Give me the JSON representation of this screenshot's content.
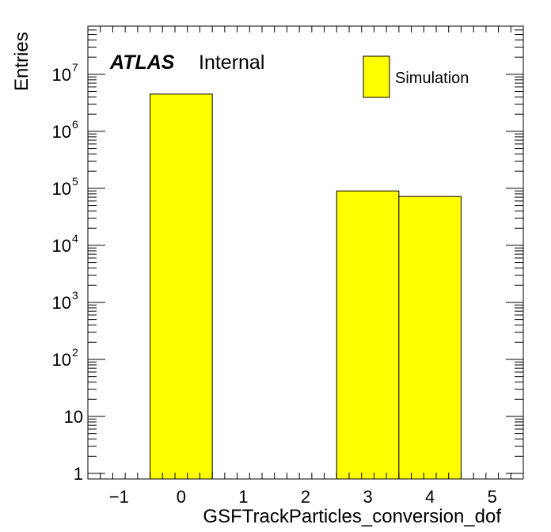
{
  "chart_data": {
    "type": "bar",
    "subtype": "histogram",
    "xlabel": "GSFTrackParticles_conversion_dof",
    "ylabel": "Entries",
    "xlim": [
      -1.5,
      5.5
    ],
    "ylim": [
      0.8,
      70000000
    ],
    "yscale": "log",
    "grid": false,
    "bin_width": 1,
    "bins": [
      {
        "x": 0,
        "value": 4500000
      },
      {
        "x": 3,
        "value": 90000
      },
      {
        "x": 4,
        "value": 72000
      }
    ],
    "xticks": [
      {
        "value": -1,
        "label": "−1"
      },
      {
        "value": 0,
        "label": "0"
      },
      {
        "value": 1,
        "label": "1"
      },
      {
        "value": 2,
        "label": "2"
      },
      {
        "value": 3,
        "label": "3"
      },
      {
        "value": 4,
        "label": "4"
      },
      {
        "value": 5,
        "label": "5"
      }
    ],
    "yticks": [
      {
        "value": 1,
        "base": "1",
        "exp": ""
      },
      {
        "value": 10,
        "base": "10",
        "exp": ""
      },
      {
        "value": 100,
        "base": "10",
        "exp": "2"
      },
      {
        "value": 1000,
        "base": "10",
        "exp": "3"
      },
      {
        "value": 10000,
        "base": "10",
        "exp": "4"
      },
      {
        "value": 100000,
        "base": "10",
        "exp": "5"
      },
      {
        "value": 1000000,
        "base": "10",
        "exp": "6"
      },
      {
        "value": 10000000,
        "base": "10",
        "exp": "7"
      }
    ],
    "series": [
      {
        "name": "Simulation",
        "color": "#ffff00"
      }
    ],
    "legend_position": "top-right",
    "label_bold": "ATLAS",
    "label_text": "Internal"
  }
}
